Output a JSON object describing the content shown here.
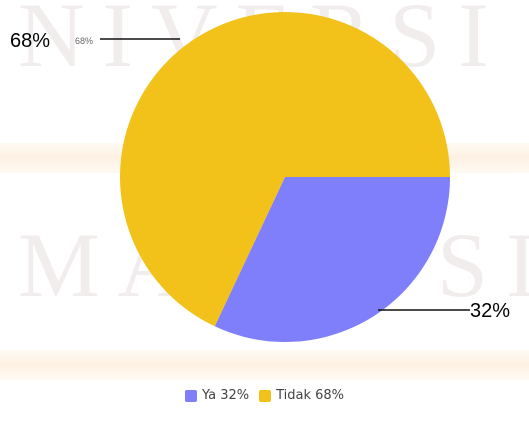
{
  "watermark": {
    "line1": "NIVERSI",
    "line2": "MALAYSI"
  },
  "chart_data": {
    "type": "pie",
    "title": "",
    "slices": [
      {
        "name": "Ya",
        "value": 32,
        "label": "32%",
        "color": "#7f7ffc"
      },
      {
        "name": "Tidak",
        "value": 68,
        "label": "68%",
        "color": "#f2c21b"
      }
    ],
    "start_angle_deg": 90,
    "direction": "clockwise",
    "legend_position": "bottom",
    "callouts": {
      "big_68": "68%",
      "small_68": "68%",
      "big_32": "32%"
    }
  },
  "legend": [
    {
      "text": "Ya 32%",
      "color": "#7f7ffc"
    },
    {
      "text": "Tidak 68%",
      "color": "#f2c21b"
    }
  ]
}
